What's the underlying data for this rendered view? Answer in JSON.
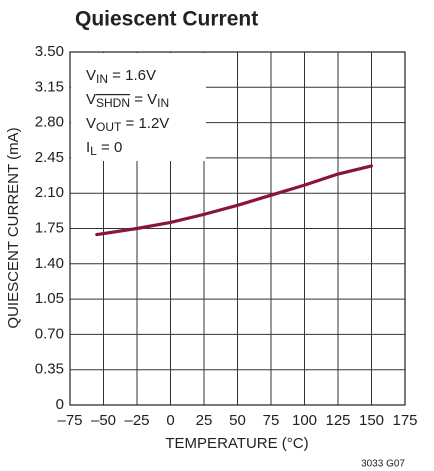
{
  "chart_data": {
    "type": "line",
    "title": "Quiescent Current",
    "x_label": "TEMPERATURE (°C)",
    "y_label": "QUIESCENT CURRENT (mA)",
    "x": [
      -55,
      -25,
      0,
      25,
      50,
      75,
      100,
      125,
      150
    ],
    "series": [
      {
        "name": "Quiescent Current",
        "color": "#8b1538",
        "values": [
          1.69,
          1.75,
          1.81,
          1.89,
          1.98,
          2.08,
          2.18,
          2.29,
          2.37
        ]
      }
    ],
    "xlim": [
      -75,
      175
    ],
    "xticks": [
      {
        "value": -75,
        "label": "–75"
      },
      {
        "value": -50,
        "label": "–50"
      },
      {
        "value": -25,
        "label": "–25"
      },
      0,
      25,
      50,
      75,
      100,
      125,
      150,
      175
    ],
    "ylim": [
      0,
      3.5
    ],
    "yticks": [
      0,
      0.35,
      {
        "value": 0.7,
        "label": "0.70"
      },
      1.05,
      {
        "value": 1.4,
        "label": "1.40"
      },
      1.75,
      {
        "value": 2.1,
        "label": "2.10"
      },
      2.45,
      {
        "value": 2.8,
        "label": "2.80"
      },
      3.15,
      {
        "value": 3.5,
        "label": "3.50"
      }
    ],
    "grid": true,
    "annotation": [
      [
        {
          "text": "V"
        },
        {
          "text": "IN",
          "sub": true
        },
        {
          "text": " = 1.6V"
        }
      ],
      [
        {
          "text": "V"
        },
        {
          "text": "SHDN",
          "sub": true,
          "overline": true
        },
        {
          "text": " = V"
        },
        {
          "text": "IN",
          "sub": true
        }
      ],
      [
        {
          "text": "V"
        },
        {
          "text": "OUT",
          "sub": true
        },
        {
          "text": " = 1.2V"
        }
      ],
      [
        {
          "text": "I"
        },
        {
          "text": "L",
          "sub": true
        },
        {
          "text": " = 0"
        }
      ]
    ],
    "footnote": "3033 G07"
  }
}
